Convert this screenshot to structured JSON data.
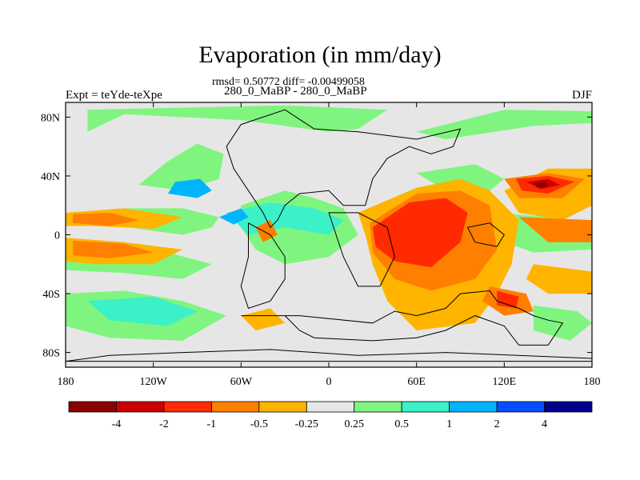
{
  "chart_data": {
    "type": "heatmap",
    "title": "Evaporation (in mm/day)",
    "stats_text": "rmsd= 0.50772 diff= -0.00499058",
    "subtitle": "280_0_MaBP - 280_0_MaBP",
    "left_label": "Expt = teYde-teXpe",
    "right_label": "DJF",
    "x_tick_labels": [
      "180",
      "120W",
      "60W",
      "0",
      "60E",
      "120E",
      "180"
    ],
    "x_ticks": [
      -180,
      -120,
      -60,
      0,
      60,
      120,
      180
    ],
    "y_tick_labels": [
      "80N",
      "40N",
      "0",
      "40S",
      "80S"
    ],
    "y_ticks": [
      80,
      40,
      0,
      -40,
      -80
    ],
    "xlim": [
      -180,
      180
    ],
    "ylim": [
      -90,
      90
    ],
    "colorbar": {
      "labels": [
        "-4",
        "-2",
        "-1",
        "-0.5",
        "-0.25",
        "0.25",
        "0.5",
        "1",
        "2",
        "4"
      ],
      "colors": [
        "#8b0000",
        "#cd0000",
        "#ff2a00",
        "#ff7f00",
        "#ffb400",
        "#e6e6e6",
        "#7ff57f",
        "#3cf0c8",
        "#00b4ff",
        "#0050ff",
        "#00008b"
      ]
    },
    "regions": [
      {
        "level": 0.375,
        "color": "#7ff57f",
        "points": [
          [
            -165,
            70
          ],
          [
            -140,
            82
          ],
          [
            -60,
            78
          ],
          [
            0,
            70
          ],
          [
            20,
            72
          ],
          [
            40,
            85
          ],
          [
            -30,
            88
          ],
          [
            -165,
            85
          ]
        ]
      },
      {
        "level": 0.375,
        "color": "#7ff57f",
        "points": [
          [
            60,
            70
          ],
          [
            120,
            85
          ],
          [
            180,
            84
          ],
          [
            180,
            76
          ],
          [
            140,
            74
          ],
          [
            80,
            65
          ]
        ]
      },
      {
        "level": 0.375,
        "color": "#7ff57f",
        "points": [
          [
            -130,
            34
          ],
          [
            -100,
            30
          ],
          [
            -75,
            38
          ],
          [
            -72,
            55
          ],
          [
            -90,
            62
          ],
          [
            -110,
            50
          ]
        ]
      },
      {
        "level": 0.375,
        "color": "#7ff57f",
        "points": [
          [
            -150,
            10
          ],
          [
            -130,
            4
          ],
          [
            -100,
            0
          ],
          [
            -80,
            5
          ],
          [
            -75,
            12
          ],
          [
            -100,
            18
          ],
          [
            -140,
            18
          ]
        ]
      },
      {
        "level": 0.375,
        "color": "#7ff57f",
        "points": [
          [
            -180,
            -14
          ],
          [
            -150,
            -10
          ],
          [
            -110,
            -12
          ],
          [
            -80,
            -20
          ],
          [
            -100,
            -30
          ],
          [
            -140,
            -26
          ],
          [
            -180,
            -24
          ]
        ]
      },
      {
        "level": 0.375,
        "color": "#7ff57f",
        "points": [
          [
            -180,
            -40
          ],
          [
            -140,
            -38
          ],
          [
            -100,
            -45
          ],
          [
            -70,
            -55
          ],
          [
            -100,
            -72
          ],
          [
            -150,
            -70
          ],
          [
            -180,
            -62
          ]
        ]
      },
      {
        "level": 0.375,
        "color": "#7ff57f",
        "points": [
          [
            -60,
            20
          ],
          [
            -30,
            30
          ],
          [
            -10,
            25
          ],
          [
            10,
            18
          ],
          [
            20,
            0
          ],
          [
            0,
            -15
          ],
          [
            -30,
            -20
          ],
          [
            -50,
            -10
          ],
          [
            -60,
            5
          ]
        ]
      },
      {
        "level": 0.375,
        "color": "#7ff57f",
        "points": [
          [
            60,
            42
          ],
          [
            100,
            48
          ],
          [
            120,
            38
          ],
          [
            100,
            22
          ],
          [
            80,
            30
          ]
        ]
      },
      {
        "level": 0.375,
        "color": "#7ff57f",
        "points": [
          [
            115,
            15
          ],
          [
            150,
            12
          ],
          [
            180,
            8
          ],
          [
            180,
            -10
          ],
          [
            140,
            -12
          ],
          [
            120,
            -5
          ]
        ]
      },
      {
        "level": 0.375,
        "color": "#7ff57f",
        "points": [
          [
            140,
            -48
          ],
          [
            170,
            -52
          ],
          [
            180,
            -60
          ],
          [
            165,
            -72
          ],
          [
            140,
            -65
          ]
        ]
      },
      {
        "level": 0.75,
        "color": "#3cf0c8",
        "points": [
          [
            -70,
            15
          ],
          [
            -40,
            22
          ],
          [
            -10,
            18
          ],
          [
            10,
            10
          ],
          [
            0,
            0
          ],
          [
            -30,
            5
          ],
          [
            -55,
            0
          ]
        ]
      },
      {
        "level": 0.75,
        "color": "#3cf0c8",
        "points": [
          [
            -165,
            -45
          ],
          [
            -120,
            -42
          ],
          [
            -90,
            -52
          ],
          [
            -110,
            -62
          ],
          [
            -150,
            -58
          ]
        ]
      },
      {
        "level": 1.5,
        "color": "#00b4ff",
        "points": [
          [
            -110,
            28
          ],
          [
            -90,
            25
          ],
          [
            -80,
            30
          ],
          [
            -88,
            38
          ],
          [
            -105,
            36
          ]
        ]
      },
      {
        "level": 1.5,
        "color": "#00b4ff",
        "points": [
          [
            -75,
            12
          ],
          [
            -60,
            18
          ],
          [
            -55,
            12
          ],
          [
            -65,
            7
          ]
        ]
      },
      {
        "level": -0.375,
        "color": "#ffb400",
        "points": [
          [
            -180,
            15
          ],
          [
            -140,
            18
          ],
          [
            -100,
            12
          ],
          [
            -120,
            4
          ],
          [
            -160,
            6
          ],
          [
            -180,
            6
          ]
        ]
      },
      {
        "level": -0.375,
        "color": "#ffb400",
        "points": [
          [
            -180,
            -2
          ],
          [
            -140,
            -5
          ],
          [
            -100,
            -10
          ],
          [
            -120,
            -20
          ],
          [
            -160,
            -20
          ],
          [
            -180,
            -18
          ]
        ]
      },
      {
        "level": -0.375,
        "color": "#ffb400",
        "points": [
          [
            20,
            15
          ],
          [
            60,
            32
          ],
          [
            90,
            38
          ],
          [
            110,
            30
          ],
          [
            130,
            10
          ],
          [
            125,
            -20
          ],
          [
            115,
            -40
          ],
          [
            100,
            -60
          ],
          [
            60,
            -65
          ],
          [
            40,
            -45
          ],
          [
            30,
            -20
          ],
          [
            25,
            0
          ]
        ]
      },
      {
        "level": -0.375,
        "color": "#ffb400",
        "points": [
          [
            120,
            30
          ],
          [
            150,
            45
          ],
          [
            180,
            45
          ],
          [
            180,
            20
          ],
          [
            160,
            10
          ],
          [
            130,
            15
          ]
        ]
      },
      {
        "level": -0.375,
        "color": "#ffb400",
        "points": [
          [
            140,
            -20
          ],
          [
            180,
            -25
          ],
          [
            180,
            -40
          ],
          [
            150,
            -40
          ],
          [
            135,
            -30
          ]
        ]
      },
      {
        "level": -0.375,
        "color": "#ffb400",
        "points": [
          [
            -60,
            -55
          ],
          [
            -40,
            -50
          ],
          [
            -30,
            -60
          ],
          [
            -50,
            -65
          ]
        ]
      },
      {
        "level": -0.75,
        "color": "#ff7f00",
        "points": [
          [
            -175,
            14
          ],
          [
            -150,
            15
          ],
          [
            -130,
            10
          ],
          [
            -150,
            6
          ],
          [
            -175,
            8
          ]
        ]
      },
      {
        "level": -0.75,
        "color": "#ff7f00",
        "points": [
          [
            -175,
            -4
          ],
          [
            -140,
            -6
          ],
          [
            -120,
            -12
          ],
          [
            -150,
            -16
          ],
          [
            -175,
            -14
          ]
        ]
      },
      {
        "level": -0.75,
        "color": "#ff7f00",
        "points": [
          [
            28,
            8
          ],
          [
            60,
            28
          ],
          [
            90,
            30
          ],
          [
            110,
            20
          ],
          [
            115,
            -10
          ],
          [
            100,
            -30
          ],
          [
            70,
            -38
          ],
          [
            45,
            -30
          ],
          [
            30,
            -12
          ]
        ]
      },
      {
        "level": -0.75,
        "color": "#ff7f00",
        "points": [
          [
            120,
            38
          ],
          [
            150,
            42
          ],
          [
            175,
            38
          ],
          [
            160,
            25
          ],
          [
            130,
            25
          ]
        ]
      },
      {
        "level": -0.75,
        "color": "#ff7f00",
        "points": [
          [
            130,
            12
          ],
          [
            180,
            10
          ],
          [
            180,
            -5
          ],
          [
            150,
            -5
          ]
        ]
      },
      {
        "level": -0.75,
        "color": "#ff7f00",
        "points": [
          [
            110,
            -35
          ],
          [
            135,
            -40
          ],
          [
            140,
            -52
          ],
          [
            120,
            -55
          ],
          [
            105,
            -45
          ]
        ]
      },
      {
        "level": -0.75,
        "color": "#ff7f00",
        "points": [
          [
            -50,
            5
          ],
          [
            -40,
            10
          ],
          [
            -35,
            0
          ],
          [
            -45,
            -5
          ]
        ]
      },
      {
        "level": -1.5,
        "color": "#ff2a00",
        "points": [
          [
            30,
            5
          ],
          [
            55,
            22
          ],
          [
            80,
            25
          ],
          [
            95,
            15
          ],
          [
            90,
            -5
          ],
          [
            70,
            -22
          ],
          [
            45,
            -18
          ],
          [
            32,
            -8
          ]
        ]
      },
      {
        "level": -1.5,
        "color": "#ff2a00",
        "points": [
          [
            128,
            38
          ],
          [
            150,
            40
          ],
          [
            168,
            36
          ],
          [
            150,
            28
          ],
          [
            132,
            30
          ]
        ]
      },
      {
        "level": -1.5,
        "color": "#ff2a00",
        "points": [
          [
            115,
            -38
          ],
          [
            130,
            -42
          ],
          [
            128,
            -50
          ],
          [
            115,
            -48
          ]
        ]
      },
      {
        "level": -3,
        "color": "#cd0000",
        "points": [
          [
            135,
            36
          ],
          [
            150,
            38
          ],
          [
            158,
            34
          ],
          [
            145,
            31
          ]
        ]
      },
      {
        "level": -5,
        "color": "#8b0000",
        "points": [
          [
            140,
            35
          ],
          [
            148,
            36
          ],
          [
            150,
            33
          ],
          [
            143,
            32
          ]
        ]
      }
    ],
    "outlines": [
      [
        [
          -30,
          85
        ],
        [
          -10,
          72
        ],
        [
          20,
          70
        ],
        [
          60,
          65
        ],
        [
          90,
          72
        ],
        [
          85,
          60
        ],
        [
          70,
          55
        ],
        [
          55,
          60
        ],
        [
          40,
          52
        ],
        [
          30,
          38
        ],
        [
          25,
          20
        ],
        [
          10,
          20
        ],
        [
          0,
          30
        ],
        [
          -20,
          28
        ],
        [
          -30,
          20
        ],
        [
          -35,
          10
        ],
        [
          -40,
          5
        ],
        [
          -45,
          15
        ],
        [
          -55,
          30
        ],
        [
          -65,
          45
        ],
        [
          -70,
          60
        ],
        [
          -60,
          75
        ]
      ],
      [
        [
          -55,
          8
        ],
        [
          -40,
          0
        ],
        [
          -30,
          -15
        ],
        [
          -30,
          -30
        ],
        [
          -40,
          -45
        ],
        [
          -55,
          -50
        ],
        [
          -60,
          -35
        ],
        [
          -55,
          -15
        ]
      ],
      [
        [
          0,
          15
        ],
        [
          20,
          15
        ],
        [
          40,
          5
        ],
        [
          45,
          -15
        ],
        [
          35,
          -35
        ],
        [
          20,
          -35
        ],
        [
          10,
          -15
        ],
        [
          5,
          0
        ]
      ],
      [
        [
          -60,
          -55
        ],
        [
          -30,
          -55
        ],
        [
          -20,
          -65
        ],
        [
          -10,
          -70
        ],
        [
          30,
          -72
        ],
        [
          60,
          -70
        ],
        [
          80,
          -65
        ],
        [
          100,
          -55
        ],
        [
          120,
          -62
        ],
        [
          130,
          -75
        ],
        [
          150,
          -75
        ],
        [
          160,
          -60
        ],
        [
          150,
          -58
        ],
        [
          140,
          -55
        ],
        [
          130,
          -50
        ],
        [
          115,
          -45
        ],
        [
          110,
          -38
        ],
        [
          90,
          -40
        ],
        [
          80,
          -50
        ],
        [
          60,
          -55
        ],
        [
          45,
          -52
        ],
        [
          30,
          -60
        ],
        [
          -20,
          -55
        ],
        [
          -40,
          -55
        ]
      ],
      [
        [
          -150,
          -82
        ],
        [
          -100,
          -80
        ],
        [
          -40,
          -78
        ],
        [
          20,
          -82
        ],
        [
          80,
          -80
        ],
        [
          180,
          -84
        ],
        [
          180,
          -86
        ],
        [
          -180,
          -86
        ]
      ],
      [
        [
          95,
          5
        ],
        [
          110,
          8
        ],
        [
          120,
          0
        ],
        [
          115,
          -8
        ],
        [
          100,
          -5
        ]
      ]
    ]
  }
}
